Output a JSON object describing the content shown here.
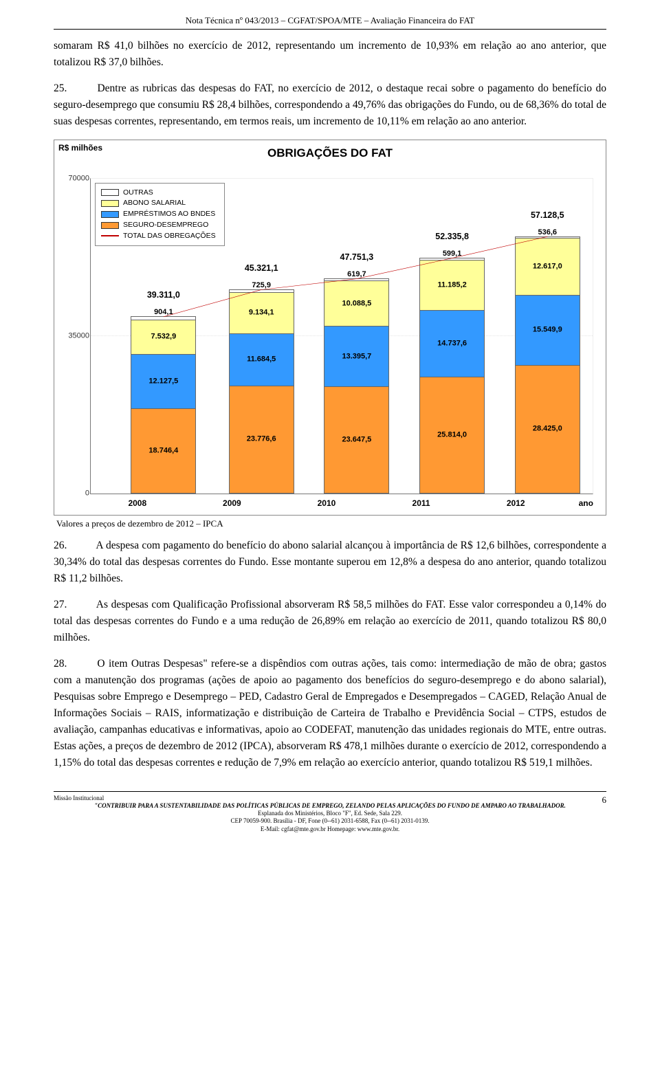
{
  "header": "Nota Técnica nº 043/2013 – CGFAT/SPOA/MTE – Avaliação Financeira do FAT",
  "paragraphs": {
    "p_first": "somaram R$ 41,0 bilhões no exercício de 2012, representando um incremento de 10,93% em relação ao ano anterior, que totalizou R$ 37,0 bilhões.",
    "p25_num": "25.",
    "p25": "Dentre as rubricas das despesas do FAT, no exercício de 2012, o destaque recai sobre o pagamento do benefício do seguro-desemprego que consumiu R$ 28,4 bilhões, correspondendo a 49,76% das obrigações do Fundo, ou de 68,36% do total de suas despesas correntes, representando, em termos reais, um incremento de 10,11% em relação ao ano anterior.",
    "chart_caption": "Valores a preços de dezembro de 2012 – IPCA",
    "p26_num": "26.",
    "p26": "A despesa com pagamento do benefício do abono salarial alcançou à importância de R$ 12,6 bilhões, correspondente a 30,34% do total das despesas correntes do Fundo. Esse montante superou em 12,8% a despesa do ano anterior, quando totalizou R$ 11,2 bilhões.",
    "p27_num": "27.",
    "p27": "As despesas com Qualificação Profissional absorveram R$ 58,5 milhões do FAT. Esse valor correspondeu a 0,14% do total das despesas correntes do Fundo e a uma redução de 26,89% em relação ao exercício de 2011, quando totalizou R$ 80,0 milhões.",
    "p28_num": "28.",
    "p28": "O item Outras Despesas\" refere-se a dispêndios com outras ações, tais como: intermediação de mão de obra; gastos com a manutenção dos programas (ações de apoio ao pagamento dos benefícios do seguro-desemprego e do abono salarial), Pesquisas sobre Emprego e Desemprego – PED, Cadastro Geral de Empregados e Desempregados – CAGED, Relação Anual de Informações Sociais – RAIS, informatização e distribuição de Carteira de Trabalho e Previdência Social – CTPS, estudos de avaliação, campanhas educativas e informativas, apoio ao CODEFAT, manutenção das unidades regionais do MTE, entre outras. Estas ações, a preços de dezembro de 2012 (IPCA), absorveram R$ 478,1 milhões durante o exercício de 2012, correspondendo a 1,15% do total das despesas correntes e redução de 7,9% em relação ao exercício anterior, quando totalizou R$ 519,1 milhões."
  },
  "chart": {
    "type": "stacked-bar-with-line",
    "title": "OBRIGAÇÕES DO FAT",
    "unit_label": "R$ milhões",
    "x_axis_label": "ano",
    "ymin": 0,
    "ymax": 70000,
    "yticks": [
      0,
      35000,
      70000
    ],
    "background_color": "#ffffff",
    "border_color": "#888888",
    "segment_border_color": "#666666",
    "label_fontsize": 11,
    "total_fontsize": 12.5,
    "axis_fontsize": 11,
    "line_color": "#c00000",
    "legend": [
      {
        "key": "outras",
        "label": "OUTRAS",
        "color": "#ffffff"
      },
      {
        "key": "abono",
        "label": "ABONO SALARIAL",
        "color": "#ffff99"
      },
      {
        "key": "bndes",
        "label": "EMPRÉSTIMOS AO BNDES",
        "color": "#3399ff"
      },
      {
        "key": "seguro",
        "label": "SEGURO-DESEMPREGO",
        "color": "#ff9933"
      },
      {
        "key": "total",
        "label": "TOTAL DAS OBREGAÇÕES",
        "color": "#c00000",
        "is_line": true
      }
    ],
    "categories": [
      "2008",
      "2009",
      "2010",
      "2011",
      "2012"
    ],
    "bar_width_pct": 13,
    "bar_positions_pct": [
      8,
      27.5,
      46.5,
      65.5,
      84.5
    ],
    "data": [
      {
        "year": "2008",
        "total": "39.311,0",
        "segments": [
          {
            "key": "seguro",
            "value": 18746.4,
            "label": "18.746,4",
            "color": "#ff9933",
            "label_pos": "inside"
          },
          {
            "key": "bndes",
            "value": 12127.5,
            "label": "12.127,5",
            "color": "#3399ff",
            "label_pos": "inside"
          },
          {
            "key": "abono",
            "value": 7532.9,
            "label": "7.532,9",
            "color": "#ffff99",
            "label_pos": "inside"
          },
          {
            "key": "outras",
            "value": 904.1,
            "label": "904,1",
            "color": "#ffffff",
            "label_pos": "outside"
          }
        ]
      },
      {
        "year": "2009",
        "total": "45.321,1",
        "segments": [
          {
            "key": "seguro",
            "value": 23776.6,
            "label": "23.776,6",
            "color": "#ff9933",
            "label_pos": "inside"
          },
          {
            "key": "bndes",
            "value": 11684.5,
            "label": "11.684,5",
            "color": "#3399ff",
            "label_pos": "inside"
          },
          {
            "key": "abono",
            "value": 9134.1,
            "label": "9.134,1",
            "color": "#ffff99",
            "label_pos": "inside"
          },
          {
            "key": "outras",
            "value": 725.9,
            "label": "725,9",
            "color": "#ffffff",
            "label_pos": "outside"
          }
        ]
      },
      {
        "year": "2010",
        "total": "47.751,3",
        "segments": [
          {
            "key": "seguro",
            "value": 23647.5,
            "label": "23.647,5",
            "color": "#ff9933",
            "label_pos": "inside"
          },
          {
            "key": "bndes",
            "value": 13395.7,
            "label": "13.395,7",
            "color": "#3399ff",
            "label_pos": "inside"
          },
          {
            "key": "abono",
            "value": 10088.5,
            "label": "10.088,5",
            "color": "#ffff99",
            "label_pos": "inside"
          },
          {
            "key": "outras",
            "value": 619.7,
            "label": "619,7",
            "color": "#ffffff",
            "label_pos": "outside"
          }
        ]
      },
      {
        "year": "2011",
        "total": "52.335,8",
        "segments": [
          {
            "key": "seguro",
            "value": 25814.0,
            "label": "25.814,0",
            "color": "#ff9933",
            "label_pos": "inside"
          },
          {
            "key": "bndes",
            "value": 14737.6,
            "label": "14.737,6",
            "color": "#3399ff",
            "label_pos": "inside"
          },
          {
            "key": "abono",
            "value": 11185.2,
            "label": "11.185,2",
            "color": "#ffff99",
            "label_pos": "inside"
          },
          {
            "key": "outras",
            "value": 599.1,
            "label": "599,1",
            "color": "#ffffff",
            "label_pos": "outside"
          }
        ]
      },
      {
        "year": "2012",
        "total": "57.128,5",
        "segments": [
          {
            "key": "seguro",
            "value": 28425.0,
            "label": "28.425,0",
            "color": "#ff9933",
            "label_pos": "inside"
          },
          {
            "key": "bndes",
            "value": 15549.9,
            "label": "15.549,9",
            "color": "#3399ff",
            "label_pos": "inside"
          },
          {
            "key": "abono",
            "value": 12617.0,
            "label": "12.617,0",
            "color": "#ffff99",
            "label_pos": "inside"
          },
          {
            "key": "outras",
            "value": 536.6,
            "label": "536,6",
            "color": "#ffffff",
            "label_pos": "outside"
          }
        ]
      }
    ],
    "line_totals": [
      39311.0,
      45321.1,
      47751.3,
      52335.8,
      57128.5
    ]
  },
  "footer": {
    "line1_left": "Missão Institucional",
    "page_number": "6",
    "line2": "\"CONTRIBUIR PARA A SUSTENTABILIDADE DAS POLÍTICAS PÚBLICAS DE EMPREGO, ZELANDO PELAS APLICAÇÕES DO FUNDO DE AMPARO AO TRABALHADOR.",
    "line3": "Esplanada dos Ministérios, Bloco \"F\", Ed. Sede, Sala 229.",
    "line4": "CEP 70059-900. Brasília - DF, Fone (0--61) 2031-6588, Fax (0--61) 2031-0139.",
    "line5": "E-Mail: cgfat@mte.gov.br    Homepage: www.mte.gov.br."
  }
}
